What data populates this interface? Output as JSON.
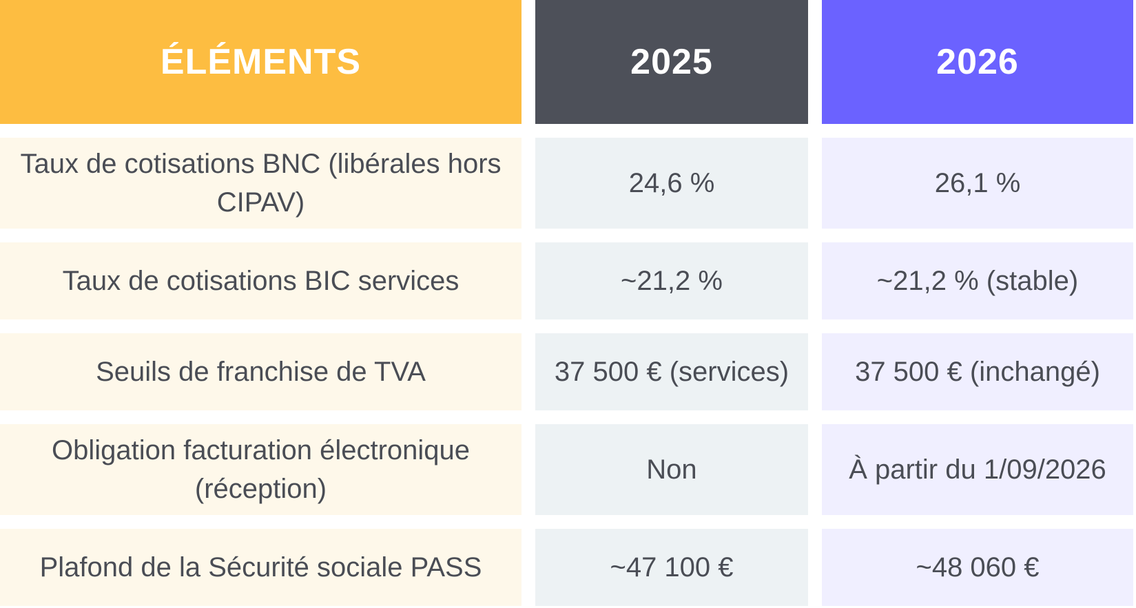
{
  "headers": {
    "elements": "ÉLÉMENTS",
    "year_2025": "2025",
    "year_2026": "2026"
  },
  "rows": [
    {
      "element": "Taux de cotisations BNC (libérales hors CIPAV)",
      "v2025": "24,6 %",
      "v2026": "26,1 %"
    },
    {
      "element": "Taux de cotisations BIC services",
      "v2025": "~21,2 %",
      "v2026": "~21,2 % (stable)"
    },
    {
      "element": "Seuils de franchise de TVA",
      "v2025": "37 500 € (services)",
      "v2026": "37 500 € (inchangé)"
    },
    {
      "element": "Obligation facturation électronique (réception)",
      "v2025": "Non",
      "v2026": "À partir du 1/09/2026"
    },
    {
      "element": "Plafond de la Sécurité sociale PASS",
      "v2025": "~47 100 €",
      "v2026": "~48 060 €"
    }
  ],
  "colors": {
    "header_elements": "#fdbd41",
    "header_2025": "#4d5059",
    "header_2026": "#6b62ff",
    "cell_elements": "#fef8ea",
    "cell_2025": "#edf2f4",
    "cell_2026": "#f0efff",
    "text": "#4a4d55"
  }
}
